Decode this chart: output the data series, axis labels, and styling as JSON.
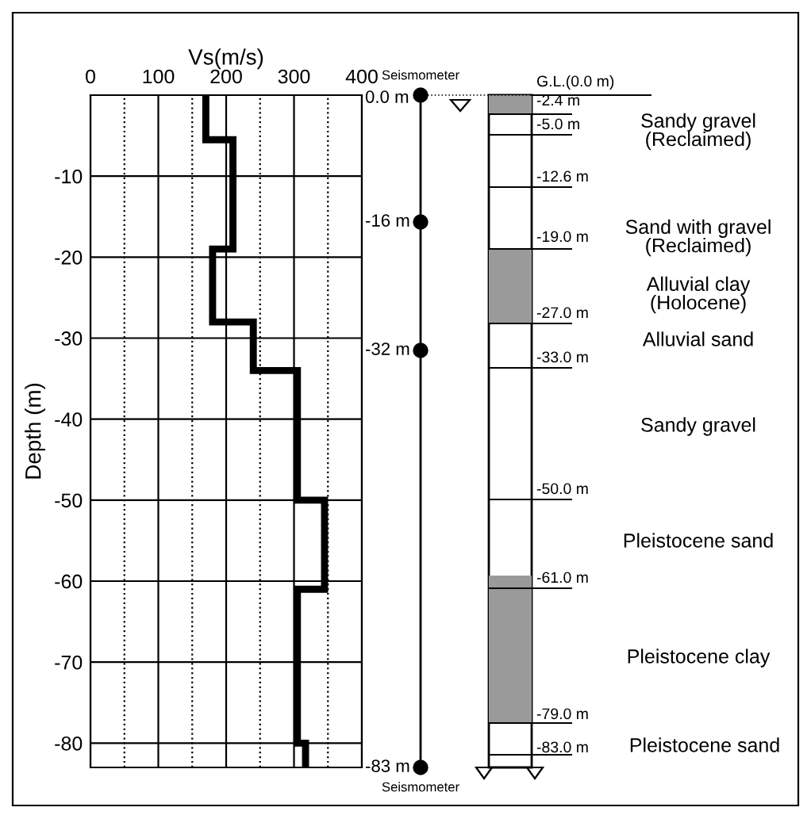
{
  "chart_data": {
    "type": "line",
    "xlabel": "Vs(m/s)",
    "ylabel": "Depth (m)",
    "series": [
      {
        "color": "#000000",
        "x": [
          170,
          170,
          210,
          210,
          180,
          180,
          240,
          240,
          305,
          305,
          345,
          345,
          305,
          305,
          317,
          317
        ],
        "values": [
          0,
          -5.5,
          -5.5,
          -19,
          -19,
          -28,
          -28,
          -34,
          -34,
          -50,
          -50,
          -61,
          -61,
          -80,
          -80,
          -83
        ]
      }
    ],
    "xlim": [
      0,
      400
    ],
    "ylim": [
      -83,
      0
    ],
    "xticks": [
      0,
      {
        "value": 50,
        "label": null
      },
      100,
      {
        "value": 150,
        "label": null
      },
      200,
      {
        "value": 250,
        "label": null
      },
      300,
      {
        "value": 350,
        "label": null
      },
      400
    ],
    "yticks": [
      -80,
      -70,
      -60,
      -50,
      -40,
      -30,
      -20,
      -10
    ],
    "grid": true,
    "marker": "none",
    "line_style": "solid",
    "annotations": [
      "Seismometer",
      "0.0 m",
      "-16 m",
      "-32 m",
      "-83 m",
      "Seismometer",
      "G.L.(0.0 m)",
      "-2.4 m",
      "-5.0 m",
      "-12.6 m",
      "-19.0 m",
      "-27.0 m",
      "-33.0 m",
      "-50.0 m",
      "-61.0 m",
      "-79.0 m",
      "-83.0 m",
      "Sandy gravel\n(Reclaimed)",
      "Sand with gravel\n(Reclaimed)",
      "Alluvial clay\n(Holocene)",
      "Alluvial sand",
      "Sandy gravel",
      "Pleistocene sand",
      "Pleistocene clay",
      "Pleistocene sand"
    ]
  }
}
